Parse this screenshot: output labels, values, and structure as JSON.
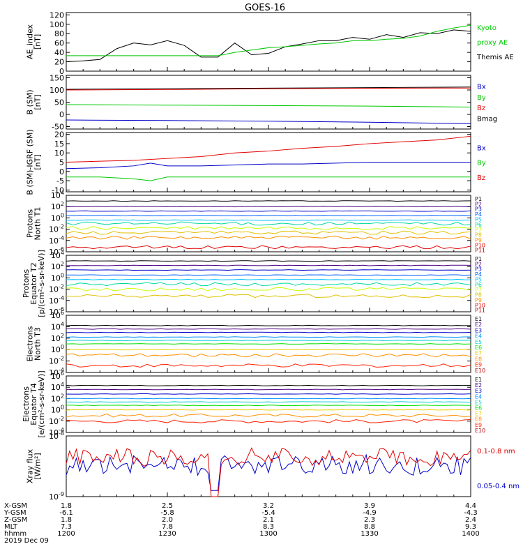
{
  "title": "GOES-16",
  "colors": {
    "black": "#000000",
    "red": "#e00000",
    "green": "#00c800",
    "blue": "#0000c8",
    "p": [
      "#000000",
      "#4b0082",
      "#0000cd",
      "#0060ff",
      "#00c0ff",
      "#00d8a0",
      "#c8ff00",
      "#e0c000",
      "#ff9000",
      "#e00000",
      "#b00000"
    ],
    "e": [
      "#000000",
      "#4b0082",
      "#0000cd",
      "#0090ff",
      "#00d0d0",
      "#00e000",
      "#e8d000",
      "#ff9000",
      "#ff2000",
      "#b00000"
    ]
  },
  "chart_data": [
    {
      "id": "ae",
      "type": "line",
      "ylabel": [
        "AE_index",
        "[nT]"
      ],
      "yticks": [
        "120",
        "100",
        "80",
        "60",
        "40",
        "20",
        "0"
      ],
      "ytick_values": [
        120,
        100,
        80,
        60,
        40,
        20,
        0
      ],
      "ylim": [
        0,
        125
      ],
      "legend": [
        {
          "label": "Kyoto",
          "color": "green"
        },
        {
          "label": "proxy AE",
          "color": "green"
        },
        {
          "label": "Themis AE",
          "color": "black"
        }
      ],
      "series": [
        {
          "color": "black",
          "x": [
            0,
            5,
            10,
            15,
            20,
            25,
            30,
            35,
            40,
            45,
            50,
            55,
            60,
            65,
            70,
            75,
            80,
            85,
            90,
            95,
            100,
            105,
            110,
            115,
            120
          ],
          "y": [
            20,
            22,
            25,
            48,
            60,
            56,
            65,
            55,
            30,
            30,
            60,
            35,
            38,
            52,
            58,
            65,
            65,
            72,
            68,
            78,
            72,
            82,
            80,
            88,
            85
          ]
        },
        {
          "color": "green",
          "x": [
            0,
            10,
            20,
            30,
            35,
            40,
            45,
            50,
            55,
            60,
            65,
            70,
            75,
            80,
            85,
            90,
            95,
            100,
            105,
            110,
            115,
            120
          ],
          "y": [
            33,
            33,
            33,
            33,
            33,
            33,
            33,
            40,
            45,
            50,
            52,
            55,
            58,
            60,
            65,
            65,
            68,
            70,
            75,
            85,
            92,
            98
          ]
        }
      ]
    },
    {
      "id": "bsm",
      "type": "line",
      "ylabel": [
        "B (SM)",
        "[nT]"
      ],
      "yticks": [
        "150",
        "100",
        "50",
        "0",
        "-50"
      ],
      "ytick_values": [
        150,
        100,
        50,
        0,
        -50
      ],
      "ylim": [
        -60,
        160
      ],
      "legend": [
        {
          "label": "Bx",
          "color": "blue"
        },
        {
          "label": "By",
          "color": "green"
        },
        {
          "label": "Bz",
          "color": "red"
        },
        {
          "label": "Bmag",
          "color": "black"
        }
      ],
      "series": [
        {
          "color": "black",
          "x": [
            0,
            120
          ],
          "y": [
            103,
            112
          ]
        },
        {
          "color": "red",
          "x": [
            0,
            30,
            60,
            90,
            120
          ],
          "y": [
            100,
            102,
            105,
            107,
            108
          ]
        },
        {
          "color": "green",
          "x": [
            0,
            30,
            60,
            90,
            120
          ],
          "y": [
            40,
            38,
            36,
            34,
            30
          ]
        },
        {
          "color": "blue",
          "x": [
            0,
            30,
            60,
            90,
            120
          ],
          "y": [
            -23,
            -25,
            -28,
            -32,
            -38
          ]
        }
      ]
    },
    {
      "id": "bigrf",
      "type": "line",
      "ylabel": [
        "B (SM)-IGRF (SM)",
        "[nT]"
      ],
      "yticks": [
        "20",
        "15",
        "10",
        "5",
        "0",
        "-5",
        "-10"
      ],
      "ytick_values": [
        20,
        15,
        10,
        5,
        0,
        -5,
        -10
      ],
      "ylim": [
        -11,
        21
      ],
      "legend": [
        {
          "label": "Bx",
          "color": "blue"
        },
        {
          "label": "By",
          "color": "green"
        },
        {
          "label": "Bz",
          "color": "red"
        }
      ],
      "series": [
        {
          "color": "red",
          "x": [
            0,
            10,
            20,
            30,
            40,
            50,
            60,
            70,
            80,
            90,
            100,
            110,
            120
          ],
          "y": [
            5,
            5.5,
            6,
            7,
            8,
            10,
            11,
            12.5,
            13.5,
            15,
            16,
            17,
            19
          ]
        },
        {
          "color": "blue",
          "x": [
            0,
            10,
            20,
            25,
            30,
            40,
            50,
            60,
            70,
            80,
            90,
            100,
            110,
            120
          ],
          "y": [
            1.5,
            2,
            3,
            4.5,
            3,
            3,
            3.5,
            4,
            4,
            4.5,
            5,
            5,
            5,
            5
          ]
        },
        {
          "color": "green",
          "x": [
            0,
            10,
            20,
            25,
            30,
            40,
            50,
            60,
            70,
            80,
            90,
            100,
            110,
            120
          ],
          "y": [
            -3,
            -3,
            -4,
            -5,
            -3,
            -3,
            -3,
            -3,
            -3,
            -3,
            -3,
            -3,
            -3,
            -3
          ]
        }
      ]
    },
    {
      "id": "protons1",
      "type": "line",
      "log": true,
      "ylabel": [
        "Protons",
        "North T1"
      ],
      "yticks": [
        "10^4",
        "10^2",
        "10^0",
        "10^-2",
        "10^-4",
        "10^-6"
      ],
      "ytick_values": [
        4,
        2,
        0,
        -2,
        -4,
        -6
      ],
      "ylim": [
        -6,
        4
      ],
      "legend": [
        "P1",
        "P2",
        "P3",
        "P4",
        "P5",
        "P6",
        "P7",
        "P8",
        "P9",
        "P10",
        "P11"
      ],
      "levels": [
        3.0,
        2.0,
        1.2,
        0.4,
        -0.4,
        -1.0,
        -1.8,
        -2.6,
        -3.5,
        -5.2
      ]
    },
    {
      "id": "protons2",
      "type": "line",
      "log": true,
      "ylabel": [
        "Protons",
        "Equator T2",
        "[p/(cm²-s-sr-keV)]"
      ],
      "yticks": [
        "10^4",
        "10^2",
        "10^0",
        "10^-2",
        "10^-4",
        "10^-6"
      ],
      "ytick_values": [
        4,
        2,
        0,
        -2,
        -4,
        -6
      ],
      "ylim": [
        -6,
        4
      ],
      "legend": [
        "P1",
        "P2",
        "P3",
        "P4",
        "P5",
        "P6",
        "P7",
        "P8",
        "P9",
        "P10",
        "P11"
      ],
      "levels": [
        3.0,
        2.2,
        1.4,
        0.5,
        -0.3,
        -1.1,
        -2.0,
        -3.2
      ]
    },
    {
      "id": "electrons1",
      "type": "line",
      "log": true,
      "ylabel": [
        "Electrons",
        "North T3"
      ],
      "yticks": [
        "10^6",
        "10^4",
        "10^2",
        "10^0",
        "10^-2",
        "10^-4"
      ],
      "ytick_values": [
        6,
        4,
        2,
        0,
        -2,
        -4
      ],
      "ylim": [
        -4,
        6
      ],
      "legend": [
        "E1",
        "E2",
        "E3",
        "E4",
        "E5",
        "E6",
        "E7",
        "E8",
        "E9",
        "E10"
      ],
      "levels": [
        4.2,
        3.6,
        3.0,
        2.2,
        1.6,
        1.0,
        0.0,
        -1.0,
        -2.8
      ]
    },
    {
      "id": "electrons2",
      "type": "line",
      "log": true,
      "ylabel": [
        "Electrons",
        "Equator T4",
        "[e/(cm²-s-sr-keV)]"
      ],
      "yticks": [
        "10^6",
        "10^4",
        "10^2",
        "10^0",
        "10^-2",
        "10^-4"
      ],
      "ytick_values": [
        6,
        4,
        2,
        0,
        -2,
        -4
      ],
      "ylim": [
        -4,
        6
      ],
      "legend": [
        "E1",
        "E2",
        "E3",
        "E4",
        "E5",
        "E6",
        "E7",
        "E8",
        "E9",
        "E10"
      ],
      "levels": [
        4.3,
        3.6,
        2.8,
        2.0,
        1.4,
        0.8,
        0.0,
        -1.0,
        -2.0
      ]
    },
    {
      "id": "xray",
      "type": "line",
      "log": true,
      "ylabel": [
        "Xray flux",
        "[W/m²]"
      ],
      "yticks": [
        "10^-8",
        "10^-9"
      ],
      "ytick_values": [
        -8,
        -9
      ],
      "ylim": [
        -9,
        -8
      ],
      "legend": [
        {
          "label": "0.1-0.8 nm",
          "color": "red"
        },
        {
          "label": "0.05-0.4 nm",
          "color": "blue"
        }
      ]
    }
  ],
  "xaxis": {
    "row_labels": [
      "X-GSM",
      "Y-GSM",
      "Z-GSM",
      "MLT",
      "hhmm",
      "2019 Dec 09"
    ],
    "columns": [
      {
        "x": 0,
        "vals": [
          "1.8",
          "-6.1",
          "1.8",
          "7.3",
          "1200"
        ]
      },
      {
        "x": 30,
        "vals": [
          "2.5",
          "-5.8",
          "2.0",
          "7.8",
          "1230"
        ]
      },
      {
        "x": 60,
        "vals": [
          "3.2",
          "-5.4",
          "2.1",
          "8.3",
          "1300"
        ]
      },
      {
        "x": 90,
        "vals": [
          "3.9",
          "-4.9",
          "2.3",
          "8.8",
          "1330"
        ]
      },
      {
        "x": 120,
        "vals": [
          "4.4",
          "-4.3",
          "2.4",
          "9.3",
          "1400"
        ]
      }
    ]
  }
}
